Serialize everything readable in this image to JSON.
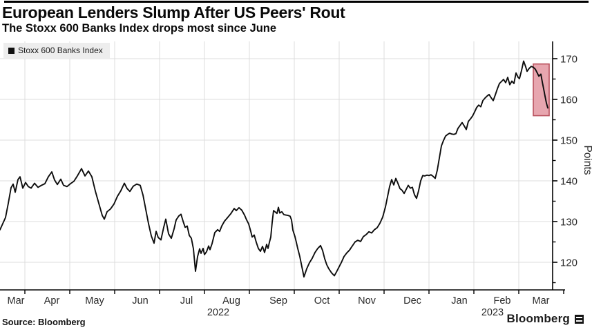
{
  "header": {
    "title": "European Lenders Slump After US Peers' Rout",
    "subtitle": "The Stoxx 600 Banks Index drops most since June"
  },
  "legend": {
    "marker": "black-square",
    "label": "Stoxx 600 Banks Index"
  },
  "footer": {
    "source": "Source: Bloomberg",
    "logo_text": "Bloomberg"
  },
  "colors": {
    "line": "#0d0d0d",
    "grid": "#dcdcdc",
    "axis": "#000000",
    "highlight_fill": "#e7a6af",
    "highlight_stroke": "#b9525e",
    "tick_label": "#2a2a2a"
  },
  "chart_data": {
    "type": "line",
    "title": "European Lenders Slump After US Peers' Rout",
    "subtitle": "The Stoxx 600 Banks Index drops most since June",
    "ylabel": "Points",
    "ylim": [
      113,
      174
    ],
    "grid": true,
    "legend_position": "top-left",
    "y_axis": {
      "major_ticks": [
        170,
        160,
        150,
        140,
        130,
        120
      ],
      "minor_ticks": [
        165,
        155,
        145,
        135,
        125,
        115
      ]
    },
    "x_axis": {
      "note": "x positions are plot pixels, Mar 2022 - Mar 2023",
      "months": [
        {
          "label": "Mar",
          "x": 23
        },
        {
          "label": "Apr",
          "x": 75
        },
        {
          "label": "May",
          "x": 137
        },
        {
          "label": "Jun",
          "x": 203
        },
        {
          "label": "Jul",
          "x": 270
        },
        {
          "label": "Aug",
          "x": 335
        },
        {
          "label": "Sep",
          "x": 403
        },
        {
          "label": "Oct",
          "x": 466
        },
        {
          "label": "Nov",
          "x": 531
        },
        {
          "label": "Dec",
          "x": 597
        },
        {
          "label": "Jan",
          "x": 665
        },
        {
          "label": "Feb",
          "x": 727
        },
        {
          "label": "Mar",
          "x": 783
        }
      ],
      "years": [
        {
          "label": "2022",
          "x": 316
        },
        {
          "label": "2023",
          "x": 713
        }
      ],
      "tick_positions": [
        36,
        101,
        166,
        231,
        296,
        361,
        426,
        491,
        556,
        621,
        686,
        751,
        816
      ]
    },
    "highlight": {
      "x_from": 772,
      "x_to": 795,
      "value_top": 168.7,
      "value_bottom": 156.0,
      "meaning": "recent slump after US peers' rout"
    },
    "series": [
      {
        "name": "Stoxx 600 Banks Index",
        "color": "#0d0d0d",
        "points": [
          [
            0,
            128
          ],
          [
            4,
            129.5
          ],
          [
            8,
            131
          ],
          [
            12,
            134.5
          ],
          [
            16,
            138.3
          ],
          [
            19,
            139.2
          ],
          [
            22,
            137.2
          ],
          [
            26,
            140.3
          ],
          [
            29,
            141
          ],
          [
            33,
            138.2
          ],
          [
            37,
            139.6
          ],
          [
            41,
            138.6
          ],
          [
            45,
            138.2
          ],
          [
            50,
            139.4
          ],
          [
            55,
            138.4
          ],
          [
            60,
            138.9
          ],
          [
            65,
            139.3
          ],
          [
            70,
            141
          ],
          [
            75,
            142.2
          ],
          [
            79,
            140.2
          ],
          [
            83,
            139.1
          ],
          [
            88,
            140.4
          ],
          [
            92,
            138.9
          ],
          [
            97,
            138.6
          ],
          [
            102,
            139.3
          ],
          [
            107,
            139.9
          ],
          [
            112,
            141.2
          ],
          [
            118,
            143
          ],
          [
            123,
            141.2
          ],
          [
            128,
            142.4
          ],
          [
            133,
            141
          ],
          [
            138,
            137.5
          ],
          [
            143,
            134.5
          ],
          [
            148,
            131.5
          ],
          [
            151,
            130.6
          ],
          [
            155,
            132.4
          ],
          [
            160,
            133.1
          ],
          [
            165,
            134.3
          ],
          [
            170,
            136.2
          ],
          [
            175,
            137.6
          ],
          [
            180,
            139.4
          ],
          [
            184,
            138.1
          ],
          [
            188,
            137.4
          ],
          [
            193,
            138.7
          ],
          [
            198,
            139.2
          ],
          [
            203,
            138.9
          ],
          [
            207,
            136.5
          ],
          [
            211,
            133
          ],
          [
            215,
            129.5
          ],
          [
            219,
            126.5
          ],
          [
            223,
            124.7
          ],
          [
            226,
            127.6
          ],
          [
            229,
            126.1
          ],
          [
            233,
            125.5
          ],
          [
            237,
            128.6
          ],
          [
            240,
            130.6
          ],
          [
            244,
            127
          ],
          [
            248,
            125.9
          ],
          [
            252,
            128.2
          ],
          [
            255,
            130.4
          ],
          [
            259,
            131.4
          ],
          [
            262,
            131.8
          ],
          [
            265,
            130.1
          ],
          [
            268,
            128.6
          ],
          [
            271,
            128.9
          ],
          [
            274,
            126.6
          ],
          [
            277,
            125.9
          ],
          [
            280,
            123.3
          ],
          [
            283,
            117.8
          ],
          [
            286,
            121.4
          ],
          [
            289,
            123.3
          ],
          [
            291,
            122.2
          ],
          [
            294,
            123.4
          ],
          [
            296,
            121.9
          ],
          [
            299,
            122.6
          ],
          [
            302,
            124
          ],
          [
            304,
            123.1
          ],
          [
            307,
            124.6
          ],
          [
            311,
            127.3
          ],
          [
            315,
            128
          ],
          [
            318,
            127.6
          ],
          [
            321,
            128.9
          ],
          [
            325,
            130.1
          ],
          [
            329,
            130.9
          ],
          [
            334,
            131.9
          ],
          [
            339,
            133.2
          ],
          [
            342,
            132.7
          ],
          [
            346,
            133.4
          ],
          [
            350,
            132.8
          ],
          [
            354,
            131.6
          ],
          [
            357,
            130.4
          ],
          [
            360,
            129.4
          ],
          [
            363,
            127.6
          ],
          [
            365,
            126.2
          ],
          [
            368,
            126.7
          ],
          [
            371,
            124.9
          ],
          [
            374,
            123.4
          ],
          [
            377,
            122.7
          ],
          [
            380,
            123.9
          ],
          [
            383,
            122.4
          ],
          [
            386,
            124.4
          ],
          [
            388,
            123.4
          ],
          [
            390,
            124.9
          ],
          [
            392,
            126.2
          ],
          [
            394,
            129.8
          ],
          [
            396,
            132.7
          ],
          [
            398,
            132.4
          ],
          [
            401,
            132
          ],
          [
            403,
            133.5
          ],
          [
            405,
            132.1
          ],
          [
            408,
            132.4
          ],
          [
            411,
            131.7
          ],
          [
            414,
            131.6
          ],
          [
            417,
            131.5
          ],
          [
            420,
            131.3
          ],
          [
            422,
            130.4
          ],
          [
            424,
            127.9
          ],
          [
            427,
            126.3
          ],
          [
            429,
            124.9
          ],
          [
            431,
            123.4
          ],
          [
            434,
            121.4
          ],
          [
            437,
            118.9
          ],
          [
            440,
            116.4
          ],
          [
            444,
            118.4
          ],
          [
            448,
            119.9
          ],
          [
            452,
            121
          ],
          [
            456,
            122.4
          ],
          [
            460,
            123.4
          ],
          [
            464,
            124.1
          ],
          [
            467,
            122.9
          ],
          [
            470,
            120.9
          ],
          [
            473,
            119.4
          ],
          [
            476,
            118.4
          ],
          [
            480,
            117.4
          ],
          [
            484,
            116.7
          ],
          [
            487,
            117.6
          ],
          [
            490,
            118.6
          ],
          [
            494,
            119.9
          ],
          [
            498,
            121.4
          ],
          [
            502,
            122.3
          ],
          [
            506,
            123
          ],
          [
            510,
            124
          ],
          [
            514,
            125
          ],
          [
            518,
            125.4
          ],
          [
            522,
            125.1
          ],
          [
            526,
            126.3
          ],
          [
            530,
            126.8
          ],
          [
            534,
            127.5
          ],
          [
            538,
            127.2
          ],
          [
            542,
            128
          ],
          [
            546,
            128.5
          ],
          [
            550,
            129.6
          ],
          [
            554,
            131.1
          ],
          [
            558,
            133.6
          ],
          [
            561,
            136.1
          ],
          [
            564,
            138.6
          ],
          [
            567,
            140.3
          ],
          [
            570,
            139
          ],
          [
            573,
            140.6
          ],
          [
            576,
            139.4
          ],
          [
            579,
            138.1
          ],
          [
            582,
            137.7
          ],
          [
            585,
            136.9
          ],
          [
            588,
            137.9
          ],
          [
            591,
            138.9
          ],
          [
            594,
            138.2
          ],
          [
            597,
            138.4
          ],
          [
            600,
            136.6
          ],
          [
            603,
            135.7
          ],
          [
            606,
            137.6
          ],
          [
            609,
            140
          ],
          [
            612,
            141.3
          ],
          [
            615,
            141.2
          ],
          [
            618,
            141.4
          ],
          [
            621,
            141.3
          ],
          [
            624,
            141.5
          ],
          [
            627,
            141.1
          ],
          [
            630,
            140.6
          ],
          [
            633,
            142.6
          ],
          [
            636,
            145.6
          ],
          [
            639,
            148.6
          ],
          [
            642,
            149.9
          ],
          [
            645,
            151
          ],
          [
            648,
            151.4
          ],
          [
            651,
            151.7
          ],
          [
            654,
            151.5
          ],
          [
            657,
            151.4
          ],
          [
            660,
            151.6
          ],
          [
            663,
            152.9
          ],
          [
            666,
            153.6
          ],
          [
            669,
            154.3
          ],
          [
            672,
            153.5
          ],
          [
            675,
            152.6
          ],
          [
            678,
            154.6
          ],
          [
            681,
            155.2
          ],
          [
            684,
            155.9
          ],
          [
            687,
            156.9
          ],
          [
            690,
            158
          ],
          [
            693,
            158.6
          ],
          [
            696,
            158.2
          ],
          [
            699,
            159.7
          ],
          [
            702,
            160.3
          ],
          [
            705,
            160.8
          ],
          [
            708,
            161.2
          ],
          [
            711,
            160.4
          ],
          [
            714,
            159.7
          ],
          [
            717,
            161.1
          ],
          [
            720,
            162.6
          ],
          [
            723,
            163.9
          ],
          [
            726,
            164.4
          ],
          [
            729,
            164.9
          ],
          [
            732,
            164.1
          ],
          [
            735,
            165.4
          ],
          [
            738,
            163.6
          ],
          [
            741,
            164.5
          ],
          [
            744,
            163.9
          ],
          [
            747,
            166.5
          ],
          [
            750,
            165.4
          ],
          [
            752,
            165.1
          ],
          [
            755,
            167.1
          ],
          [
            758,
            169.4
          ],
          [
            761,
            168
          ],
          [
            763,
            166.9
          ],
          [
            766,
            167.6
          ],
          [
            769,
            168.1
          ],
          [
            772,
            167.9
          ],
          [
            775,
            167.4
          ],
          [
            778,
            166.4
          ],
          [
            780,
            165.7
          ],
          [
            783,
            166.2
          ],
          [
            785,
            164.3
          ],
          [
            787,
            162.6
          ],
          [
            789,
            160.8
          ],
          [
            791,
            159.1
          ],
          [
            793,
            157.9
          ]
        ]
      }
    ]
  }
}
